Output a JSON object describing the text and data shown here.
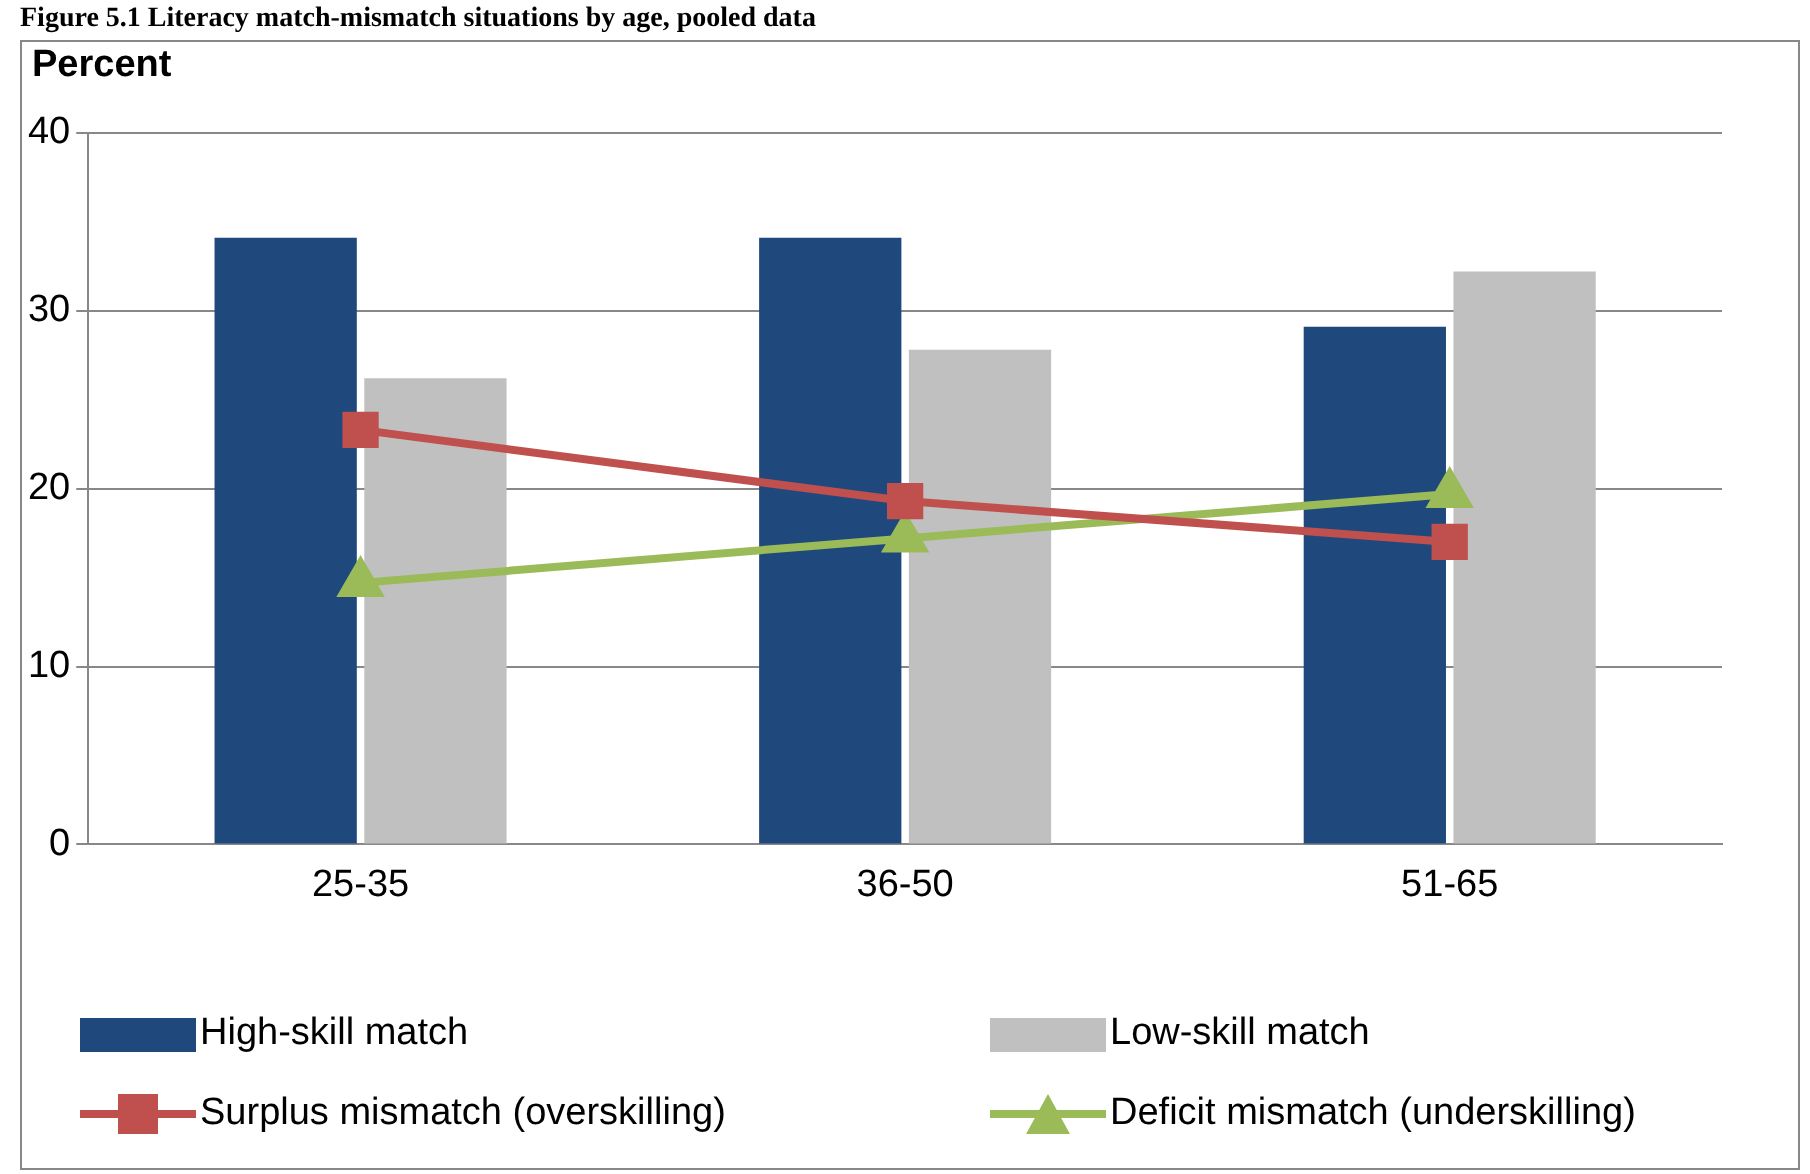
{
  "chart_data": {
    "type": "bar",
    "title": "Figure 5.1 Literacy match-mismatch situations by age, pooled data",
    "ylabel": "Percent",
    "categories": [
      "25-35",
      "36-50",
      "51-65"
    ],
    "series": [
      {
        "name": "High-skill match",
        "color": "#1f497d",
        "values": [
          34.1,
          34.1,
          29.1
        ]
      },
      {
        "name": "Low-skill match",
        "color": "#c0c0c0",
        "values": [
          26.2,
          27.8,
          32.2
        ]
      },
      {
        "name": "Surplus mismatch (overskilling)",
        "type": "line",
        "marker": "square",
        "color": "#c0504d",
        "values": [
          23.3,
          19.3,
          17.0
        ]
      },
      {
        "name": "Deficit mismatch (underskilling)",
        "type": "line",
        "marker": "triangle",
        "color": "#9bbb59",
        "values": [
          14.7,
          17.2,
          19.7
        ]
      }
    ],
    "ylim": [
      0,
      40
    ],
    "yticks": [
      0,
      10,
      20,
      30,
      40
    ],
    "grid": "y",
    "legend": "bottom"
  }
}
